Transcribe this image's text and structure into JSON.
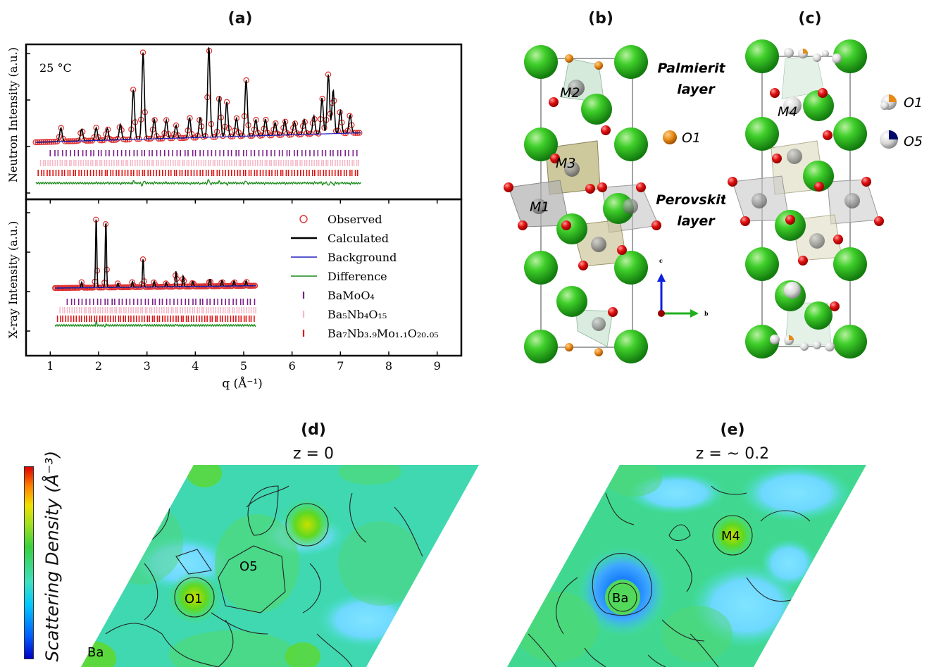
{
  "panels": {
    "a": "(a)",
    "b": "(b)",
    "c": "(c)",
    "d": "(d)",
    "e": "(e)"
  },
  "chart_data": [
    {
      "type": "line",
      "panel": "(a) top",
      "annotation": "25 °C",
      "xlim": [
        0.5,
        9.5
      ],
      "ylabel": "Neutron Intensity (a.u.)",
      "peaks_q": [
        1.22,
        1.65,
        1.95,
        2.18,
        2.45,
        2.72,
        2.92,
        3.15,
        3.4,
        3.6,
        3.88,
        4.1,
        4.28,
        4.5,
        4.65,
        4.85,
        5.05,
        5.25,
        5.45,
        5.65,
        5.85,
        6.05,
        6.25,
        6.45,
        6.62,
        6.75,
        6.85,
        7.0,
        7.2
      ],
      "peaks_rel": [
        0.15,
        0.13,
        0.14,
        0.13,
        0.17,
        0.55,
        0.95,
        0.22,
        0.2,
        0.14,
        0.22,
        0.22,
        1.0,
        0.45,
        0.38,
        0.2,
        0.62,
        0.18,
        0.18,
        0.14,
        0.16,
        0.14,
        0.16,
        0.2,
        0.4,
        0.65,
        0.48,
        0.25,
        0.2
      ]
    },
    {
      "type": "line",
      "panel": "(a) bottom",
      "xlabel": "q (Å⁻¹)",
      "xlim": [
        0.5,
        9.5
      ],
      "xticks": [
        1,
        2,
        3,
        4,
        5,
        6,
        7,
        8,
        9
      ],
      "ylabel": "X-ray Intensity (a.u.)",
      "peaks_q": [
        1.65,
        1.95,
        2.15,
        2.4,
        2.7,
        2.92,
        3.15,
        3.4,
        3.6,
        3.75,
        3.95,
        4.3,
        4.55,
        4.8,
        5.05
      ],
      "peaks_rel": [
        0.08,
        1.0,
        0.95,
        0.06,
        0.08,
        0.4,
        0.08,
        0.06,
        0.22,
        0.15,
        0.07,
        0.1,
        0.08,
        0.07,
        0.07
      ],
      "legend": {
        "placement": "right",
        "entries": [
          {
            "label": "Observed",
            "color": "#e03030",
            "marker": "open-circle"
          },
          {
            "label": "Calculated",
            "color": "#000000",
            "marker": "line"
          },
          {
            "label": "Background",
            "color": "#2020c0",
            "marker": "line"
          },
          {
            "label": "Difference",
            "color": "#1a8a1a",
            "marker": "line"
          },
          {
            "label": "BaMoO₄",
            "color": "#7a1f8a",
            "marker": "tick"
          },
          {
            "label": "Ba₅Nb₄O₁₅",
            "color": "#f5b8c8",
            "marker": "tick"
          },
          {
            "label": "Ba₇Nb₃.₉Mo₁.₁O₂₀.₀₅",
            "color": "#e01010",
            "marker": "tick"
          }
        ]
      }
    }
  ],
  "structure_b": {
    "labels": [
      "M2",
      "M3",
      "M1"
    ],
    "palmierite": "Palmierite",
    "layer1": "layer",
    "perovskite": "Perovskite",
    "layer2": "layer",
    "o1": "O1",
    "axis_c": "c",
    "axis_b": "b"
  },
  "structure_c": {
    "m4": "M4",
    "o1": "O1",
    "o5": "O5"
  },
  "maps": {
    "d_z": "z = 0",
    "e_z": "z = ~ 0.2",
    "d_labels": [
      "O5",
      "O1",
      "Ba"
    ],
    "e_labels": [
      "M4",
      "Ba"
    ],
    "colorbar_label": "Scattering Density (Å⁻³)"
  }
}
